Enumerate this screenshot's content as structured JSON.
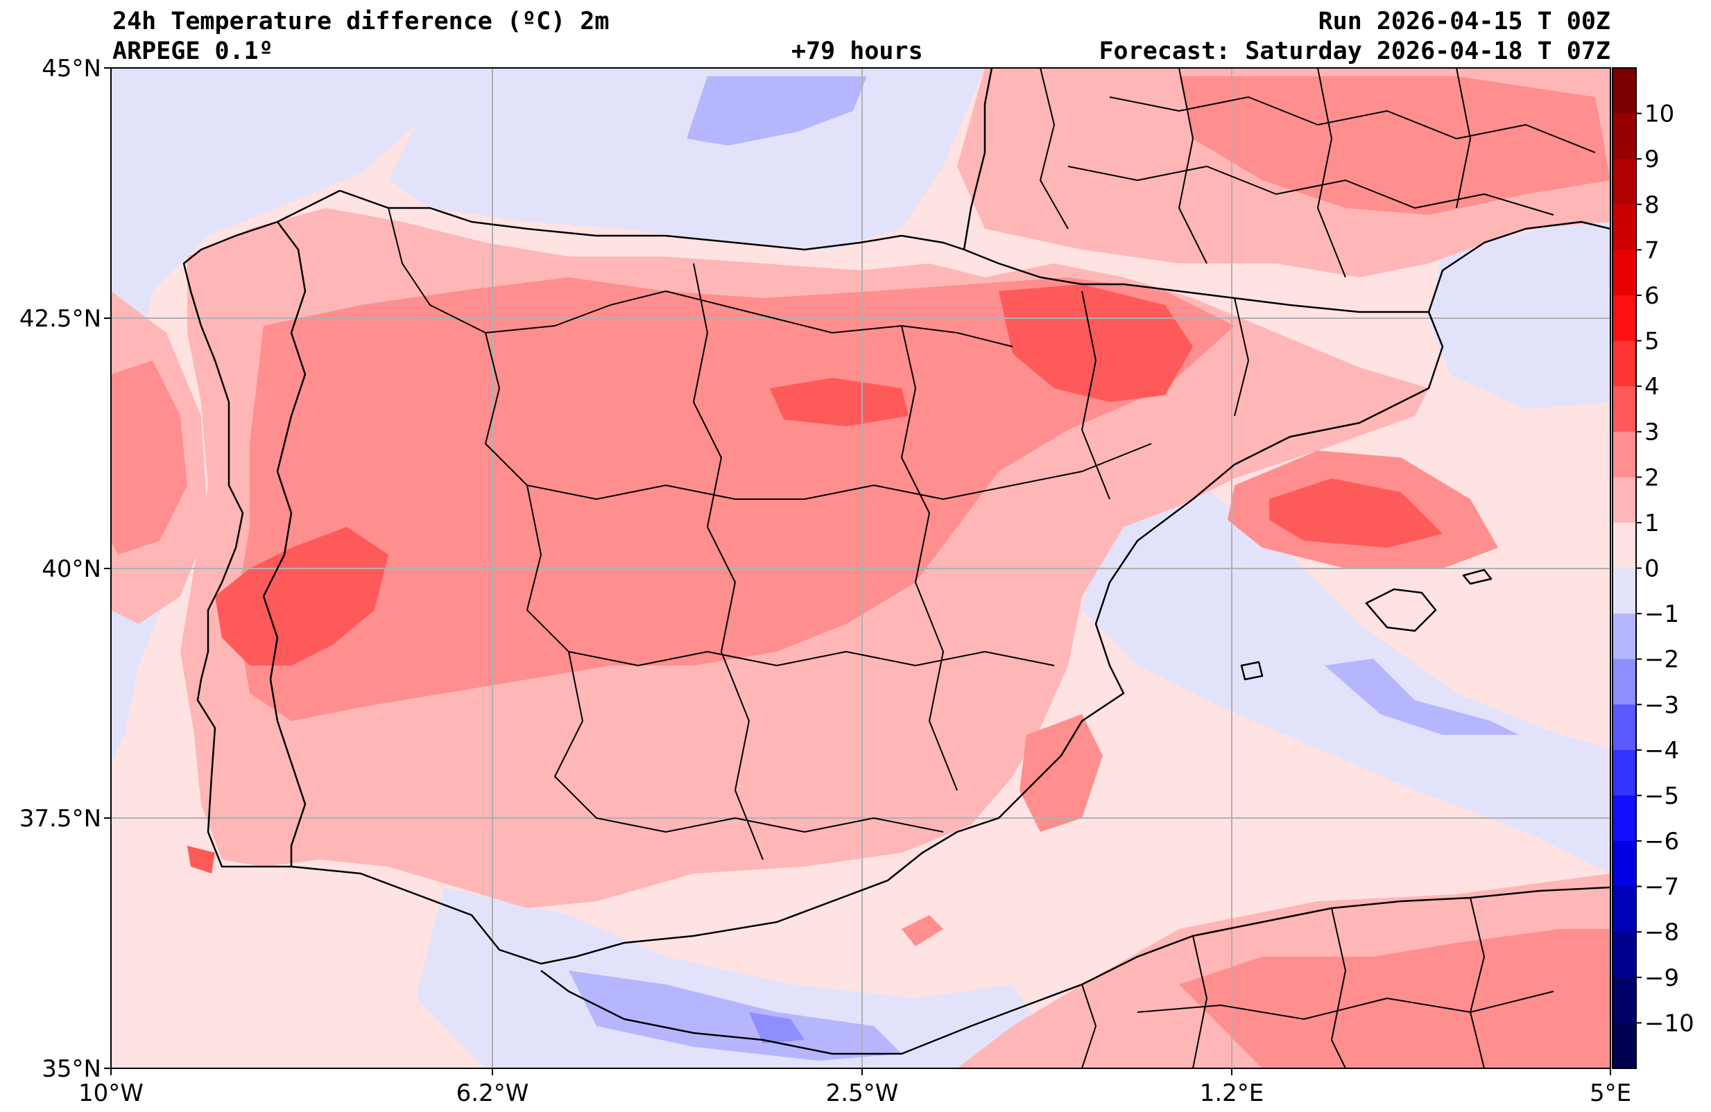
{
  "header": {
    "title": "24h Temperature difference (ºC) 2m",
    "model": "ARPEGE 0.1º",
    "lead_time": "+79 hours",
    "run": "Run 2026-04-15 T 00Z",
    "forecast": "Forecast: Saturday 2026-04-18 T 07Z"
  },
  "map": {
    "lat_labels": [
      "45°N",
      "42.5°N",
      "40°N",
      "37.5°N",
      "35°N"
    ],
    "lon_labels": [
      "10°W",
      "6.2°W",
      "2.5°W",
      "1.2°E",
      "5°E"
    ],
    "grid": true,
    "region": "Iberian Peninsula"
  },
  "colorbar": {
    "ticks": [
      "10",
      "9",
      "8",
      "7",
      "6",
      "5",
      "4",
      "3",
      "2",
      "1",
      "0",
      "−1",
      "−2",
      "−3",
      "−4",
      "−5",
      "−6",
      "−7",
      "−8",
      "−9",
      "−10"
    ],
    "colors_top_to_bottom": [
      "#7a0000",
      "#960000",
      "#b00000",
      "#cc0000",
      "#e80000",
      "#ff1010",
      "#ff3434",
      "#ff5a5a",
      "#ff8e8e",
      "#ffb6b6",
      "#ffe2e2",
      "#e2e2fa",
      "#b6b6ff",
      "#8e8eff",
      "#5a5aff",
      "#3434ff",
      "#1010ff",
      "#0000e0",
      "#0000b8",
      "#000090",
      "#000066"
    ],
    "extra_bottom_color": "#000050"
  },
  "colors": {
    "sea_neutral": "#ffe2e2",
    "sea_cool": "#e2e2fa",
    "land_warm1": "#ffb6b6",
    "land_warm2": "#ff8e8e",
    "land_warm3": "#ff5a5a",
    "cool1": "#b6b6ff",
    "cool2": "#8e8eff",
    "border": "#000000",
    "grid": "#b0b0b0"
  }
}
